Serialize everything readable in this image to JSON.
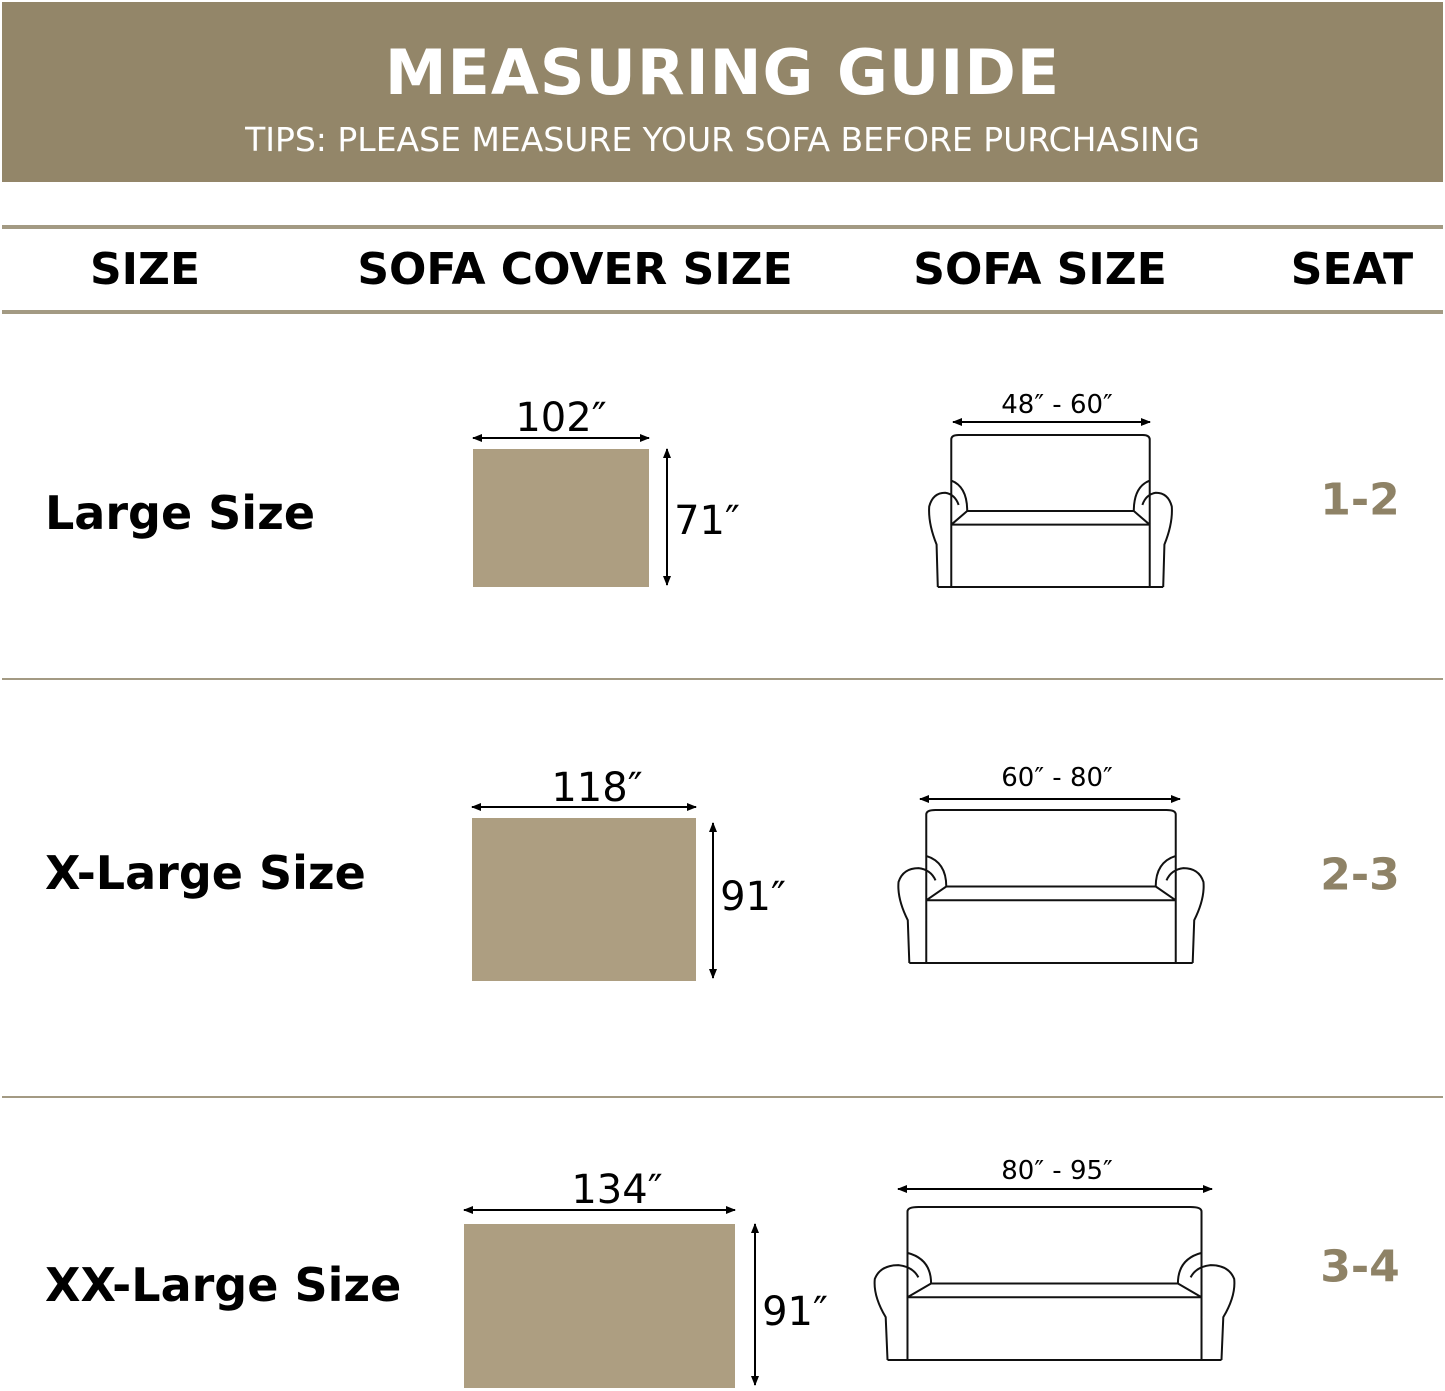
{
  "header": {
    "title": "MEASURING GUIDE",
    "subtitle": "TIPS: PLEASE MEASURE YOUR SOFA BEFORE PURCHASING"
  },
  "columns": [
    "SIZE",
    "SOFA COVER SIZE",
    "SOFA SIZE",
    "SEAT"
  ],
  "rows": [
    {
      "size": "Large Size",
      "cover_width": "102″",
      "cover_height": "71″",
      "sofa_size": "48″ - 60″",
      "seat": "1-2"
    },
    {
      "size": "X-Large Size",
      "cover_width": "118″",
      "cover_height": "91″",
      "sofa_size": "60″ - 80″",
      "seat": "2-3"
    },
    {
      "size": "XX-Large Size",
      "cover_width": "134″",
      "cover_height": "91″",
      "sofa_size": "80″ - 95″",
      "seat": "3-4"
    }
  ],
  "colors": {
    "banner": "#938669",
    "cover_swatch": "#ad9e81",
    "seat_text": "#8e8266",
    "divider": "#a39a83"
  }
}
